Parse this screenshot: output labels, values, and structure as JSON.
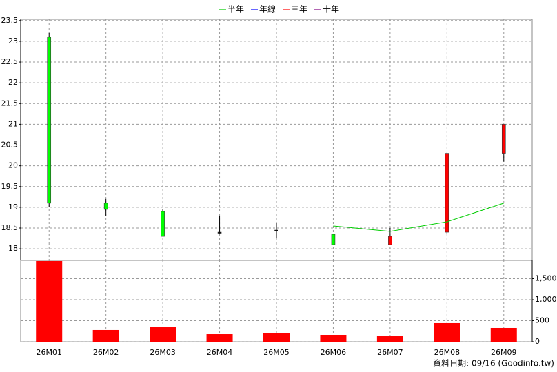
{
  "chart_data": [
    {
      "type": "candlestick",
      "categories": [
        "26M01",
        "26M02",
        "26M03",
        "26M04",
        "26M05",
        "26M06",
        "26M07",
        "26M08",
        "26M09"
      ],
      "open": [
        23.1,
        19.1,
        18.9,
        18.4,
        18.45,
        18.35,
        18.1,
        18.4,
        20.3
      ],
      "high": [
        23.2,
        19.2,
        18.95,
        18.8,
        18.63,
        18.35,
        18.5,
        20.3,
        21.0
      ],
      "low": [
        19.0,
        18.8,
        18.3,
        18.35,
        18.25,
        18.1,
        18.1,
        18.35,
        20.1
      ],
      "close": [
        19.1,
        18.95,
        18.3,
        18.4,
        18.45,
        18.1,
        18.3,
        20.3,
        21.0
      ],
      "up_color": "#ff0000",
      "down_color": "#00ff00",
      "series": [
        {
          "name": "半年",
          "color": "#00cc00",
          "values": [
            null,
            null,
            null,
            null,
            null,
            18.55,
            18.42,
            18.65,
            19.1
          ]
        },
        {
          "name": "年線",
          "color": "#0000ff",
          "values": [
            null,
            null,
            null,
            null,
            null,
            null,
            null,
            null,
            null
          ]
        },
        {
          "name": "三年",
          "color": "#ff0000",
          "values": [
            null,
            null,
            null,
            null,
            null,
            null,
            null,
            null,
            null
          ]
        },
        {
          "name": "十年",
          "color": "#800080",
          "values": [
            null,
            null,
            null,
            null,
            null,
            null,
            null,
            null,
            null
          ]
        }
      ],
      "ylim": [
        17.72,
        23.53
      ],
      "yticks": [
        18,
        18.5,
        19,
        19.5,
        20,
        20.5,
        21,
        21.5,
        22,
        22.5,
        23,
        23.5
      ],
      "grid": true
    },
    {
      "type": "bar",
      "values": [
        1918,
        279,
        344,
        180,
        213,
        164,
        131,
        443,
        328
      ],
      "color": "#ff0000",
      "ylim": [
        0,
        1934
      ],
      "yticks": [
        0,
        500,
        {
          "value": 1000,
          "label": "1,000"
        },
        {
          "value": 1500,
          "label": "1,500"
        }
      ],
      "grid": true
    }
  ],
  "footer": "資料日期: 09/16  (Goodinfo.tw)"
}
